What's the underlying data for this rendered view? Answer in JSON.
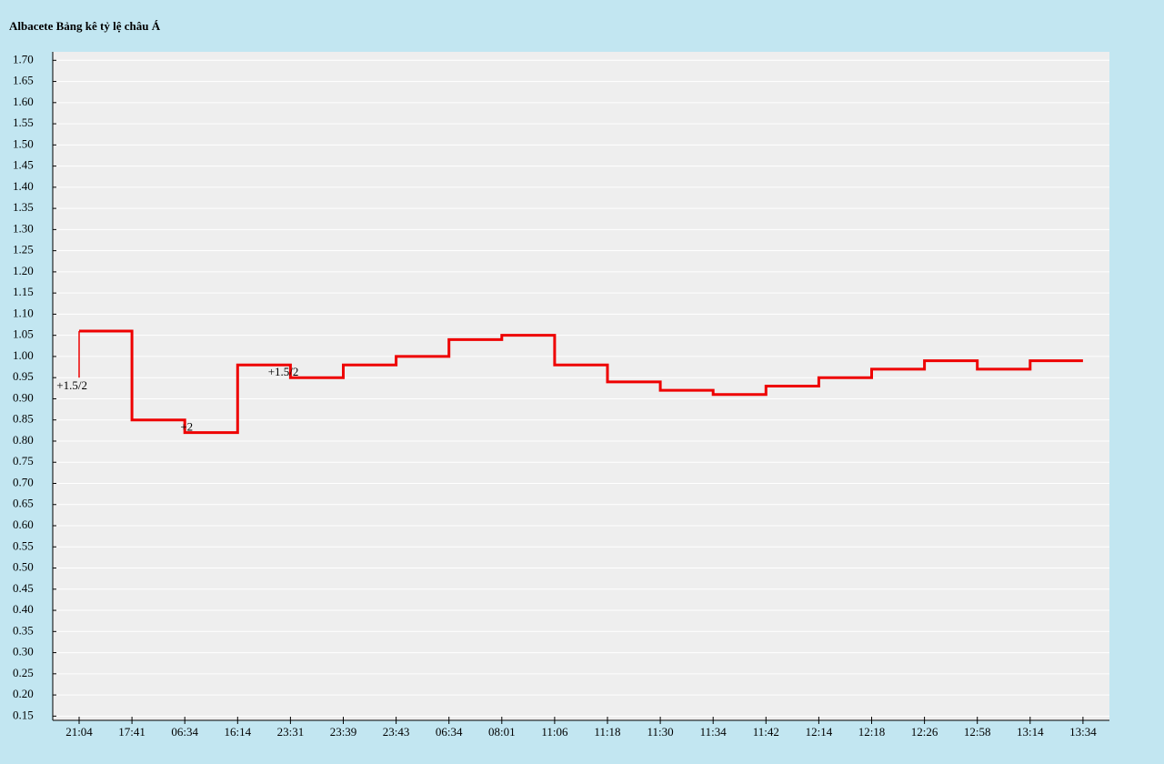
{
  "chart_data": {
    "type": "step",
    "title": "Albacete Bảng kê tỷ lệ châu Á",
    "categories": [
      "21:04",
      "17:41",
      "06:34",
      "16:14",
      "23:31",
      "23:39",
      "23:43",
      "06:34",
      "08:01",
      "11:06",
      "11:18",
      "11:30",
      "11:34",
      "11:42",
      "12:14",
      "12:18",
      "12:26",
      "12:58",
      "13:14",
      "13:34"
    ],
    "start_value": 0.95,
    "values": [
      1.06,
      0.85,
      0.82,
      0.98,
      0.95,
      0.98,
      1.0,
      1.04,
      1.05,
      0.98,
      0.94,
      0.92,
      0.91,
      0.93,
      0.95,
      0.97,
      0.99,
      0.97,
      0.99,
      0.99
    ],
    "color": "#ee0000",
    "ylim": [
      0.14,
      1.72
    ],
    "yticks": [
      {
        "value": 0.15,
        "label": "0.15"
      },
      {
        "value": 0.2,
        "label": "0.20"
      },
      {
        "value": 0.25,
        "label": "0.25"
      },
      {
        "value": 0.3,
        "label": "0.30"
      },
      {
        "value": 0.35,
        "label": "0.35"
      },
      {
        "value": 0.4,
        "label": "0.40"
      },
      {
        "value": 0.45,
        "label": "0.45"
      },
      {
        "value": 0.5,
        "label": "0.50"
      },
      {
        "value": 0.55,
        "label": "0.55"
      },
      {
        "value": 0.6,
        "label": "0.60"
      },
      {
        "value": 0.65,
        "label": "0.65"
      },
      {
        "value": 0.7,
        "label": "0.70"
      },
      {
        "value": 0.75,
        "label": "0.75"
      },
      {
        "value": 0.8,
        "label": "0.80"
      },
      {
        "value": 0.85,
        "label": "0.85"
      },
      {
        "value": 0.9,
        "label": "0.90"
      },
      {
        "value": 0.95,
        "label": "0.95"
      },
      {
        "value": 1.0,
        "label": "1.00"
      },
      {
        "value": 1.05,
        "label": "1.05"
      },
      {
        "value": 1.1,
        "label": "1.10"
      },
      {
        "value": 1.15,
        "label": "1.15"
      },
      {
        "value": 1.2,
        "label": "1.20"
      },
      {
        "value": 1.25,
        "label": "1.25"
      },
      {
        "value": 1.3,
        "label": "1.30"
      },
      {
        "value": 1.35,
        "label": "1.35"
      },
      {
        "value": 1.4,
        "label": "1.40"
      },
      {
        "value": 1.45,
        "label": "1.45"
      },
      {
        "value": 1.5,
        "label": "1.50"
      },
      {
        "value": 1.55,
        "label": "1.55"
      },
      {
        "value": 1.6,
        "label": "1.60"
      },
      {
        "value": 1.65,
        "label": "1.65"
      },
      {
        "value": 1.7,
        "label": "1.70"
      }
    ],
    "grid": true,
    "annotations": [
      {
        "text": "+1.5/2",
        "x": "21:04"
      },
      {
        "text": "+2",
        "x": "06:34"
      },
      {
        "text": "+1.5/2",
        "x": "23:31"
      }
    ]
  }
}
